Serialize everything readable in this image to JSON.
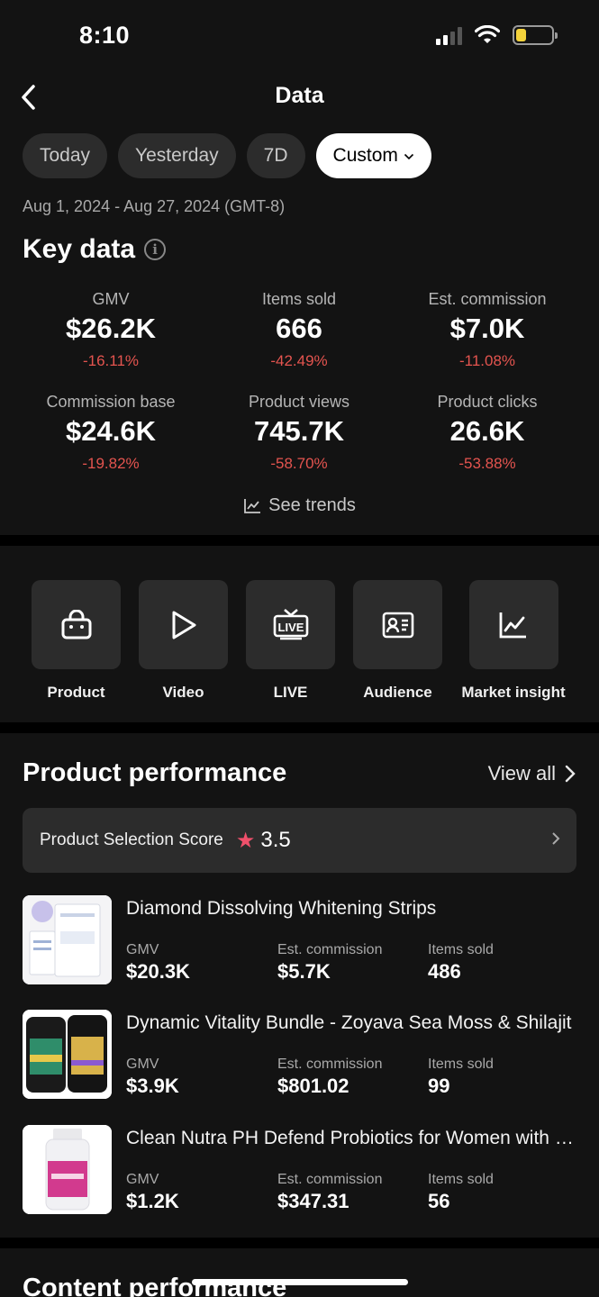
{
  "status_bar": {
    "time": "8:10"
  },
  "header": {
    "title": "Data"
  },
  "date_filters": {
    "chips": [
      "Today",
      "Yesterday",
      "7D"
    ],
    "custom_label": "Custom",
    "range_text": "Aug 1, 2024 - Aug 27, 2024 (GMT-8)"
  },
  "key_data": {
    "title": "Key data",
    "metrics": [
      {
        "label": "GMV",
        "value": "$26.2K",
        "change": "-16.11%"
      },
      {
        "label": "Items sold",
        "value": "666",
        "change": "-42.49%"
      },
      {
        "label": "Est. commission",
        "value": "$7.0K",
        "change": "-11.08%"
      },
      {
        "label": "Commission base",
        "value": "$24.6K",
        "change": "-19.82%"
      },
      {
        "label": "Product views",
        "value": "745.7K",
        "change": "-58.70%"
      },
      {
        "label": "Product clicks",
        "value": "26.6K",
        "change": "-53.88%"
      }
    ],
    "see_trends": "See trends"
  },
  "tools": [
    {
      "label": "Product",
      "icon": "shopping-bag-icon"
    },
    {
      "label": "Video",
      "icon": "play-icon"
    },
    {
      "label": "LIVE",
      "icon": "live-tv-icon"
    },
    {
      "label": "Audience",
      "icon": "id-card-icon"
    },
    {
      "label": "Market insight",
      "icon": "line-chart-icon"
    }
  ],
  "product_performance": {
    "title": "Product performance",
    "view_all": "View all",
    "score": {
      "label": "Product Selection Score",
      "value": "3.5"
    },
    "stat_labels": {
      "gmv": "GMV",
      "commission": "Est. commission",
      "items": "Items sold"
    },
    "products": [
      {
        "name": "Diamond Dissolving Whitening Strips",
        "gmv": "$20.3K",
        "commission": "$5.7K",
        "items": "486"
      },
      {
        "name": "Dynamic Vitality Bundle - Zoyava Sea Moss & Shilajit",
        "gmv": "$3.9K",
        "commission": "$801.02",
        "items": "99"
      },
      {
        "name": "Clean Nutra PH Defend Probiotics for Women with Cranberry",
        "gmv": "$1.2K",
        "commission": "$347.31",
        "items": "56"
      }
    ]
  },
  "content_performance": {
    "title": "Content performance"
  },
  "colors": {
    "negative": "#e4544f",
    "star": "#f0506b",
    "battery": "#f3d23b"
  }
}
